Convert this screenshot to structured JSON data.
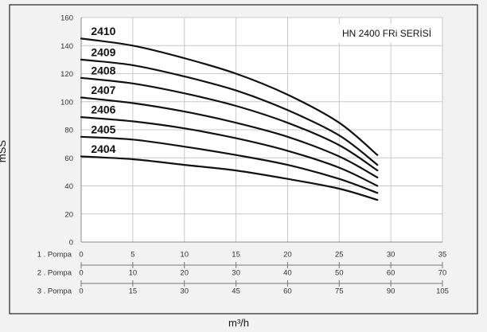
{
  "chart_data": {
    "type": "line",
    "annotation": "HN 2400 FRi SERİSİ",
    "ylabel": "mSS",
    "xlabel": "m³/h",
    "ylim": [
      0,
      160
    ],
    "yticks": [
      0,
      20,
      40,
      60,
      80,
      100,
      120,
      140,
      160
    ],
    "grid": true,
    "x_scales": [
      {
        "label": "1 . Pompa",
        "ticks": [
          0,
          5,
          10,
          15,
          20,
          25,
          30,
          35
        ]
      },
      {
        "label": "2 . Pompa",
        "ticks": [
          0,
          10,
          20,
          30,
          40,
          50,
          60,
          70
        ]
      },
      {
        "label": "3 . Pompa",
        "ticks": [
          0,
          15,
          30,
          45,
          60,
          75,
          90,
          105
        ]
      }
    ],
    "primary_xlim": [
      0,
      35
    ],
    "x": [
      0,
      5,
      10,
      15,
      20,
      25,
      28.7
    ],
    "series": [
      {
        "name": "2410",
        "values": [
          145,
          140,
          131,
          120,
          105,
          85,
          62
        ]
      },
      {
        "name": "2409",
        "values": [
          130,
          126,
          118,
          108,
          94,
          76,
          55
        ]
      },
      {
        "name": "2408",
        "values": [
          117,
          113,
          106,
          97,
          85,
          69,
          51
        ]
      },
      {
        "name": "2407",
        "values": [
          103,
          99,
          93,
          85,
          75,
          61,
          46
        ]
      },
      {
        "name": "2406",
        "values": [
          89,
          86,
          81,
          74,
          65,
          53,
          40
        ]
      },
      {
        "name": "2405",
        "values": [
          75,
          73,
          68,
          62,
          55,
          45,
          35
        ]
      },
      {
        "name": "2404",
        "values": [
          61,
          59,
          55,
          51,
          45,
          38,
          30
        ]
      }
    ]
  },
  "colors": {
    "background": "#f2f2f2",
    "plot_background": "#ffffff",
    "grid": "#c8c8c8",
    "line": "#111111",
    "frame": "#222222"
  }
}
